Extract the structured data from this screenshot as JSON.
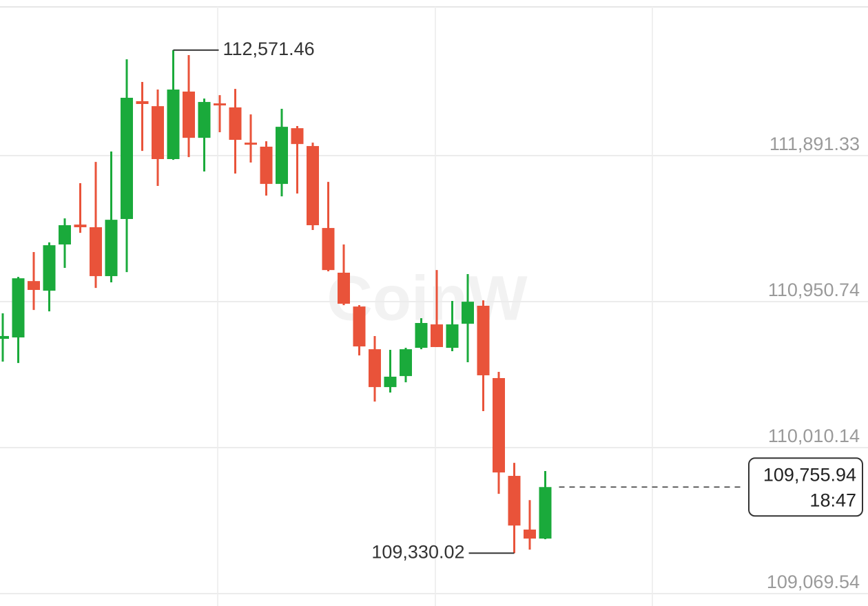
{
  "chart_data": {
    "type": "candlestick",
    "watermark": "CoinW",
    "categories": [
      null,
      null,
      null,
      null,
      null,
      null,
      null,
      null,
      null,
      null,
      null,
      null,
      null,
      null,
      null,
      null,
      null,
      null,
      null,
      null,
      null,
      null,
      null,
      null,
      null,
      null,
      null,
      null,
      null,
      null,
      null,
      null,
      null,
      null,
      null,
      null
    ],
    "open": [
      110711,
      110720,
      111083,
      111021,
      111319,
      111447,
      111430,
      111115,
      111483,
      112242,
      112210,
      111869,
      112304,
      112006,
      112228,
      112202,
      111975,
      111949,
      111709,
      112068,
      111953,
      111425,
      111137,
      110919,
      110644,
      110400,
      110471,
      110653,
      110804,
      110653,
      110808,
      110924,
      110458,
      109828,
      109482,
      109424
    ],
    "high": [
      110875,
      111110,
      111270,
      111332,
      111487,
      111714,
      111851,
      111918,
      112512,
      112366,
      112317,
      112571.46,
      112539,
      112259,
      112281,
      112321,
      112157,
      111984,
      112193,
      112082,
      111975,
      111722,
      111319,
      110928,
      110729,
      110640,
      110653,
      110844,
      111154,
      110955,
      111128,
      110959,
      110498,
      109912,
      109672,
      109859
    ],
    "low": [
      110564,
      110555,
      110897,
      110888,
      111168,
      111394,
      111039,
      111075,
      111141,
      111922,
      111696,
      111864,
      111882,
      111789,
      112042,
      111776,
      111847,
      111634,
      111629,
      111647,
      111412,
      111146,
      110928,
      110604,
      110307,
      110365,
      110431,
      110644,
      110658,
      110631,
      110560,
      110245,
      109712,
      109330.02,
      109353,
      109420
    ],
    "close": [
      110729,
      111101,
      111026,
      111314,
      111443,
      111430,
      111115,
      111478,
      112264,
      112224,
      111869,
      112317,
      112006,
      112237,
      112219,
      111993,
      111962,
      111709,
      112077,
      111966,
      111443,
      111154,
      110937,
      110662,
      110400,
      110467,
      110644,
      110813,
      110658,
      110804,
      110950,
      110476,
      109850,
      109508,
      109424,
      109755.94
    ],
    "up_color": "#1aaa3b",
    "down_color": "#e9533a",
    "ylim": [
      108989.6,
      112849.6
    ],
    "yticks": [
      {
        "value": 109069.54,
        "label": "109,069.54"
      },
      {
        "value": 110010.14,
        "label": "110,010.14"
      },
      {
        "value": 110950.74,
        "label": "110,950.74"
      },
      {
        "value": 111891.33,
        "label": "111,891.33"
      }
    ],
    "grid": true,
    "high_marker": {
      "value": 112571.46,
      "label": "112,571.46"
    },
    "low_marker": {
      "value": 109330.02,
      "label": "109,330.02"
    },
    "last_price": {
      "value": 109755.94,
      "label": "109,755.94",
      "countdown": "18:47"
    }
  }
}
